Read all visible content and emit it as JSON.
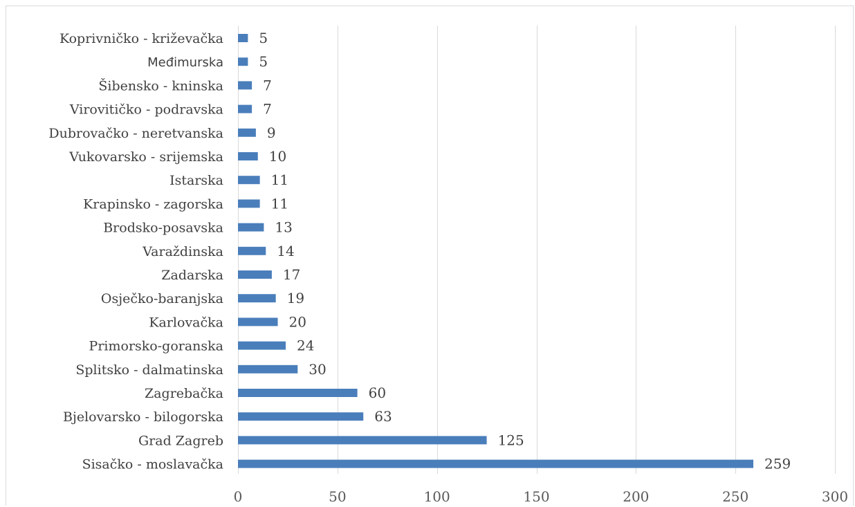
{
  "chart_data": {
    "type": "bar",
    "orientation": "horizontal",
    "title": "",
    "xlabel": "",
    "ylabel": "",
    "xlim": [
      0,
      300
    ],
    "ticks": [
      0,
      50,
      100,
      150,
      200,
      250,
      300
    ],
    "grid": true,
    "legend": "none",
    "bar_color": "#4a7ebb",
    "categories": [
      "Koprivničko - križevačka",
      "Međimurska",
      "Šibensko - kninska",
      "Virovitičko - podravska",
      "Dubrovačko - neretvanska",
      "Vukovarsko - srijemska",
      "Istarska",
      "Krapinsko - zagorska",
      "Brodsko-posavska",
      "Varaždinska",
      "Zadarska",
      "Osječko-baranjska",
      "Karlovačka",
      "Primorsko-goranska",
      "Splitsko - dalmatinska",
      "Zagrebačka",
      "Bjelovarsko - bilogorska",
      "Grad Zagreb",
      "Sisačko - moslavačka"
    ],
    "values": [
      5,
      5,
      7,
      7,
      9,
      10,
      11,
      11,
      13,
      14,
      17,
      19,
      20,
      24,
      30,
      60,
      63,
      125,
      259
    ]
  }
}
